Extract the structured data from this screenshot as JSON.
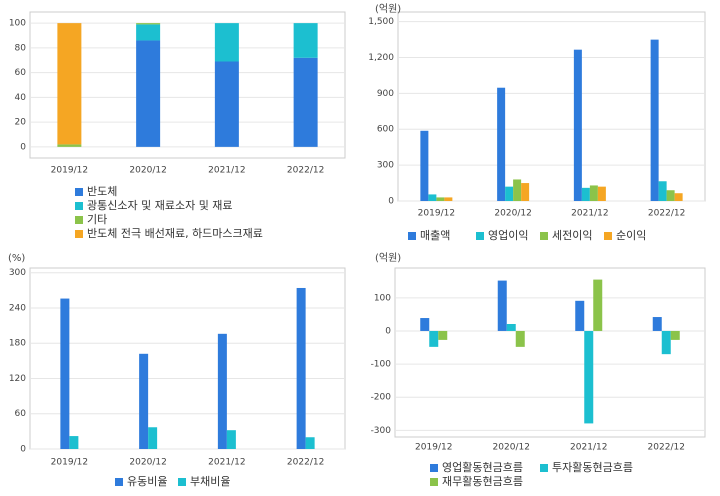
{
  "chart_data": [
    {
      "type": "bar",
      "stacked": true,
      "categories": [
        "2019/12",
        "2020/12",
        "2021/12",
        "2022/12"
      ],
      "series": [
        {
          "name": "반도체",
          "color": "#2e7bdc",
          "values": [
            0,
            86,
            69,
            72
          ]
        },
        {
          "name": "광통신소자 및 재료소자 및 재료",
          "color": "#1cbfd0",
          "values": [
            0,
            13,
            31,
            28
          ]
        },
        {
          "name": "기타",
          "color": "#8bc34a",
          "values": [
            2,
            1,
            0,
            0
          ]
        },
        {
          "name": "반도체 전극 배선재료, 하드마스크재료",
          "color": "#f5a623",
          "values": [
            98,
            0,
            0,
            0
          ]
        }
      ],
      "ylim": [
        -9,
        109
      ],
      "yticks": [
        0,
        20,
        40,
        60,
        80,
        100
      ],
      "grid": true
    },
    {
      "type": "bar",
      "stacked": false,
      "y_unit": "(억원)",
      "categories": [
        "2019/12",
        "2020/12",
        "2021/12",
        "2022/12"
      ],
      "series": [
        {
          "name": "매출액",
          "color": "#2e7bdc",
          "values": [
            587,
            947,
            1265,
            1349
          ]
        },
        {
          "name": "영업이익",
          "color": "#1cbfd0",
          "values": [
            55,
            120,
            110,
            165
          ]
        },
        {
          "name": "세전이익",
          "color": "#8bc34a",
          "values": [
            30,
            180,
            130,
            90
          ]
        },
        {
          "name": "순이익",
          "color": "#f5a623",
          "values": [
            30,
            150,
            120,
            65
          ]
        }
      ],
      "ylim": [
        0,
        1580
      ],
      "yticks": [
        0,
        300,
        600,
        900,
        {
          "value": 1200,
          "label": "1,200"
        },
        {
          "value": 1500,
          "label": "1,500"
        }
      ],
      "grid": true
    },
    {
      "type": "bar",
      "stacked": false,
      "y_unit": "(%)",
      "categories": [
        "2019/12",
        "2020/12",
        "2021/12",
        "2022/12"
      ],
      "series": [
        {
          "name": "유동비율",
          "color": "#2e7bdc",
          "values": [
            256,
            162,
            196,
            274
          ]
        },
        {
          "name": "부채비율",
          "color": "#1cbfd0",
          "values": [
            22,
            37,
            32,
            20
          ]
        }
      ],
      "ylim": [
        0,
        308
      ],
      "yticks": [
        0,
        60,
        120,
        180,
        240,
        300
      ],
      "grid": true
    },
    {
      "type": "bar",
      "stacked": false,
      "y_unit": "(억원)",
      "categories": [
        "2019/12",
        "2020/12",
        "2021/12",
        "2022/12"
      ],
      "series": [
        {
          "name": "영업활동현금흐름",
          "color": "#2e7bdc",
          "values": [
            39,
            152,
            91,
            42
          ]
        },
        {
          "name": "투자활동현금흐름",
          "color": "#1cbfd0",
          "values": [
            -48,
            21,
            -279,
            -70
          ]
        },
        {
          "name": "재무활동현금흐름",
          "color": "#8bc34a",
          "values": [
            -27,
            -48,
            155,
            -27
          ]
        }
      ],
      "ylim": [
        -320,
        190
      ],
      "yticks": [
        -300,
        -200,
        -100,
        0,
        100
      ],
      "grid": true
    }
  ]
}
